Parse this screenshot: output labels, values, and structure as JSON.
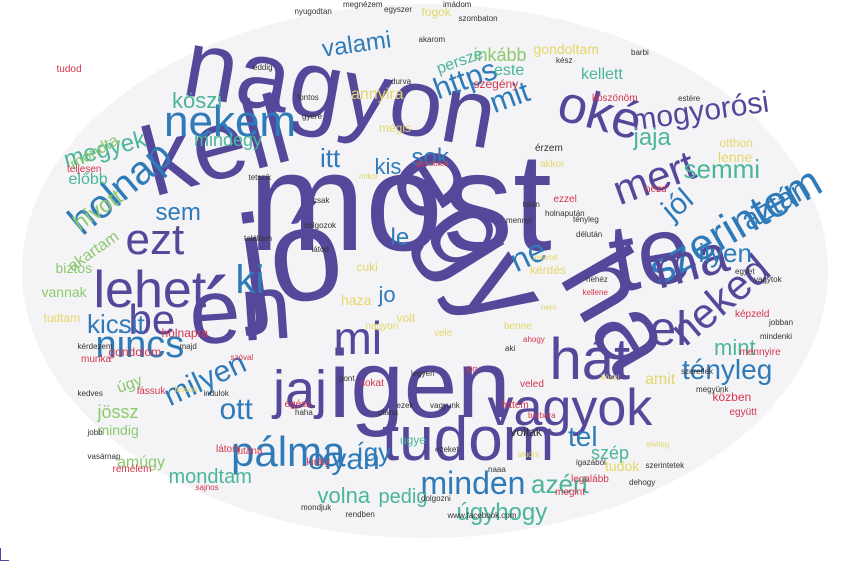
{
  "colors": {
    "purple": "#55479a",
    "blue": "#2f7ab8",
    "teal": "#4bb59b",
    "green": "#8cc96e",
    "yellow": "#e4d76a",
    "red": "#d2354d",
    "gray": "#333333"
  },
  "words": [
    {
      "text": "most",
      "color": "purple"
    },
    {
      "text": "jó",
      "color": "purple"
    },
    {
      "text": "nagyon",
      "color": "purple"
    },
    {
      "text": "egy",
      "color": "purple"
    },
    {
      "text": "te",
      "color": "purple"
    },
    {
      "text": "kell",
      "color": "purple"
    },
    {
      "text": "én",
      "color": "purple"
    },
    {
      "text": "igen",
      "color": "purple"
    },
    {
      "text": "ha",
      "color": "purple"
    },
    {
      "text": "tudom",
      "color": "purple"
    },
    {
      "text": "vagyok",
      "color": "purple"
    },
    {
      "text": "hát",
      "color": "purple"
    },
    {
      "text": "jaj",
      "color": "purple"
    },
    {
      "text": "oké",
      "color": "purple"
    },
    {
      "text": "nekem",
      "color": "blue"
    },
    {
      "text": "szerintem",
      "color": "blue"
    },
    {
      "text": "neked",
      "color": "purple"
    },
    {
      "text": "mi",
      "color": "purple"
    },
    {
      "text": "el",
      "color": "purple"
    },
    {
      "text": "ma",
      "color": "purple"
    },
    {
      "text": "lehet",
      "color": "purple"
    },
    {
      "text": "ezt",
      "color": "purple"
    },
    {
      "text": "be",
      "color": "purple"
    },
    {
      "text": "pálma",
      "color": "blue"
    },
    {
      "text": "holnap",
      "color": "blue"
    },
    {
      "text": "nincs",
      "color": "blue"
    },
    {
      "text": "ki",
      "color": "blue"
    },
    {
      "text": "mert",
      "color": "purple"
    },
    {
      "text": "mogyorósi",
      "color": "purple"
    },
    {
      "text": "https",
      "color": "blue"
    },
    {
      "text": "mit",
      "color": "blue"
    },
    {
      "text": "valami",
      "color": "blue"
    },
    {
      "text": "minden",
      "color": "blue"
    },
    {
      "text": "olyan",
      "color": "blue"
    },
    {
      "text": "ott",
      "color": "blue"
    },
    {
      "text": "milyen",
      "color": "blue"
    },
    {
      "text": "tényleg",
      "color": "blue"
    },
    {
      "text": "kicsit",
      "color": "blue"
    },
    {
      "text": "ilyen",
      "color": "blue"
    },
    {
      "text": "azért",
      "color": "teal"
    },
    {
      "text": "úgyhogy",
      "color": "teal"
    },
    {
      "text": "volna",
      "color": "teal"
    },
    {
      "text": "aztán",
      "color": "blue"
    },
    {
      "text": "jól",
      "color": "blue"
    },
    {
      "text": "sem",
      "color": "blue"
    },
    {
      "text": "itt",
      "color": "blue"
    },
    {
      "text": "kis",
      "color": "blue"
    },
    {
      "text": "sok",
      "color": "blue"
    },
    {
      "text": "ne",
      "color": "blue"
    },
    {
      "text": "le",
      "color": "blue"
    },
    {
      "text": "jo",
      "color": "blue"
    },
    {
      "text": "mint",
      "color": "teal"
    },
    {
      "text": "tel",
      "color": "blue"
    },
    {
      "text": "így",
      "color": "blue"
    },
    {
      "text": "szép",
      "color": "teal"
    },
    {
      "text": "köszi",
      "color": "teal"
    },
    {
      "text": "megyek",
      "color": "teal"
    },
    {
      "text": "jaja",
      "color": "teal"
    },
    {
      "text": "semmi",
      "color": "teal"
    },
    {
      "text": "mondtam",
      "color": "teal"
    },
    {
      "text": "pedig",
      "color": "teal"
    },
    {
      "text": "inkább",
      "color": "green"
    },
    {
      "text": "este",
      "color": "teal"
    },
    {
      "text": "kellett",
      "color": "teal"
    },
    {
      "text": "mindegy",
      "color": "teal"
    },
    {
      "text": "előbb",
      "color": "teal"
    },
    {
      "text": "hívott",
      "color": "green"
    },
    {
      "text": "mondta",
      "color": "green"
    },
    {
      "text": "jössz",
      "color": "green"
    },
    {
      "text": "úgy",
      "color": "green"
    },
    {
      "text": "amúgy",
      "color": "green"
    },
    {
      "text": "mindig",
      "color": "green"
    },
    {
      "text": "akartam",
      "color": "green"
    },
    {
      "text": "biztos",
      "color": "green"
    },
    {
      "text": "vannak",
      "color": "green"
    },
    {
      "text": "tudtam",
      "color": "yellow"
    },
    {
      "text": "annyira",
      "color": "yellow"
    },
    {
      "text": "persze",
      "color": "teal"
    },
    {
      "text": "gondoltam",
      "color": "yellow"
    },
    {
      "text": "fogok",
      "color": "yellow"
    },
    {
      "text": "lenne",
      "color": "yellow"
    },
    {
      "text": "otthon",
      "color": "yellow"
    },
    {
      "text": "tudok",
      "color": "yellow"
    },
    {
      "text": "ugye",
      "color": "teal"
    },
    {
      "text": "mégis",
      "color": "yellow"
    },
    {
      "text": "haza",
      "color": "yellow"
    },
    {
      "text": "cuki",
      "color": "yellow"
    },
    {
      "text": "amit",
      "color": "yellow"
    },
    {
      "text": "kérdés",
      "color": "yellow"
    },
    {
      "text": "volt",
      "color": "yellow"
    },
    {
      "text": "köszönöm",
      "color": "red"
    },
    {
      "text": "szegény",
      "color": "red"
    },
    {
      "text": "tudod",
      "color": "red"
    },
    {
      "text": "gondolom",
      "color": "red"
    },
    {
      "text": "teljesen",
      "color": "red"
    },
    {
      "text": "egész",
      "color": "red"
    },
    {
      "text": "utána",
      "color": "red"
    },
    {
      "text": "király",
      "color": "red"
    },
    {
      "text": "nézd",
      "color": "red"
    },
    {
      "text": "ezzel",
      "color": "red"
    },
    {
      "text": "holnapra",
      "color": "red"
    },
    {
      "text": "veled",
      "color": "red"
    },
    {
      "text": "mennyire",
      "color": "red"
    },
    {
      "text": "együtt",
      "color": "red"
    },
    {
      "text": "képzeld",
      "color": "red"
    },
    {
      "text": "közben",
      "color": "red"
    },
    {
      "text": "legalább",
      "color": "red"
    },
    {
      "text": "megint",
      "color": "red"
    },
    {
      "text": "remélem",
      "color": "red"
    },
    {
      "text": "sajnos",
      "color": "red"
    },
    {
      "text": "munka",
      "color": "red"
    },
    {
      "text": "lássuk",
      "color": "red"
    },
    {
      "text": "hittem",
      "color": "red"
    },
    {
      "text": "látom",
      "color": "red"
    },
    {
      "text": "sokat",
      "color": "red"
    },
    {
      "text": "mondjuk",
      "color": "gray"
    },
    {
      "text": "rendben",
      "color": "gray"
    },
    {
      "text": "dolgozni",
      "color": "gray"
    },
    {
      "text": "megnézem",
      "color": "gray"
    },
    {
      "text": "egyszer",
      "color": "gray"
    },
    {
      "text": "nyugodtan",
      "color": "gray"
    },
    {
      "text": "imádom",
      "color": "gray"
    },
    {
      "text": "szombaton",
      "color": "gray"
    },
    {
      "text": "akarom",
      "color": "gray"
    },
    {
      "text": "eddig",
      "color": "gray"
    },
    {
      "text": "durva",
      "color": "gray"
    },
    {
      "text": "barbi",
      "color": "gray"
    },
    {
      "text": "haha",
      "color": "gray"
    },
    {
      "text": "vagyunk",
      "color": "gray"
    },
    {
      "text": "naaa",
      "color": "gray"
    },
    {
      "text": "igazából",
      "color": "gray"
    },
    {
      "text": "kész",
      "color": "gray"
    },
    {
      "text": "ezeket",
      "color": "gray"
    },
    {
      "text": "www.facebook.com",
      "color": "gray"
    },
    {
      "text": "mindenki",
      "color": "gray"
    },
    {
      "text": "jobban",
      "color": "gray"
    },
    {
      "text": "egyet",
      "color": "gray"
    },
    {
      "text": "vagytok",
      "color": "gray"
    },
    {
      "text": "aludni",
      "color": "yellow"
    },
    {
      "text": "voltak",
      "color": "gray"
    },
    {
      "text": "barbara",
      "color": "red"
    },
    {
      "text": "gondolod",
      "color": "red"
    },
    {
      "text": "nagyon",
      "color": "yellow"
    },
    {
      "text": "jött",
      "color": "red"
    },
    {
      "text": "aki",
      "color": "gray"
    },
    {
      "text": "vele",
      "color": "yellow"
    },
    {
      "text": "ezek",
      "color": "gray"
    },
    {
      "text": "benne",
      "color": "yellow"
    },
    {
      "text": "legyen",
      "color": "gray"
    },
    {
      "text": "utána",
      "color": "gray"
    },
    {
      "text": "lassan",
      "color": "yellow"
    },
    {
      "text": "szóval",
      "color": "red"
    },
    {
      "text": "mikor",
      "color": "yellow"
    },
    {
      "text": "tetszik",
      "color": "gray"
    },
    {
      "text": "dehogy",
      "color": "gray"
    },
    {
      "text": "kedves",
      "color": "gray"
    },
    {
      "text": "indulok",
      "color": "gray"
    },
    {
      "text": "elvileg",
      "color": "yellow"
    },
    {
      "text": "köszi",
      "color": "yellow"
    },
    {
      "text": "vasárnap",
      "color": "gray"
    },
    {
      "text": "akkor",
      "color": "yellow"
    },
    {
      "text": "estére",
      "color": "gray"
    },
    {
      "text": "szerintetek",
      "color": "gray"
    },
    {
      "text": "jobb",
      "color": "gray"
    },
    {
      "text": "megyünk",
      "color": "gray"
    },
    {
      "text": "majd",
      "color": "gray"
    },
    {
      "text": "gyere",
      "color": "gray"
    },
    {
      "text": "fontos",
      "color": "gray"
    },
    {
      "text": "csak",
      "color": "gray"
    },
    {
      "text": "pont",
      "color": "gray"
    },
    {
      "text": "kérdezem",
      "color": "gray"
    },
    {
      "text": "dolgozok",
      "color": "gray"
    },
    {
      "text": "találtam",
      "color": "gray"
    },
    {
      "text": "látod",
      "color": "gray"
    },
    {
      "text": "mennyi",
      "color": "gray"
    },
    {
      "text": "talán",
      "color": "gray"
    },
    {
      "text": "délután",
      "color": "gray"
    },
    {
      "text": "holnapután",
      "color": "gray"
    },
    {
      "text": "szeretlek",
      "color": "gray"
    },
    {
      "text": "tényleg",
      "color": "gray"
    },
    {
      "text": "valamit",
      "color": "yellow"
    },
    {
      "text": "érzem",
      "color": "gray"
    },
    {
      "text": "nehéz",
      "color": "gray"
    },
    {
      "text": "ahogy",
      "color": "red"
    },
    {
      "text": "kellene",
      "color": "red"
    },
    {
      "text": "nem",
      "color": "yellow"
    },
    {
      "text": "más",
      "color": "red"
    },
    {
      "text": "perc",
      "color": "yellow"
    }
  ]
}
